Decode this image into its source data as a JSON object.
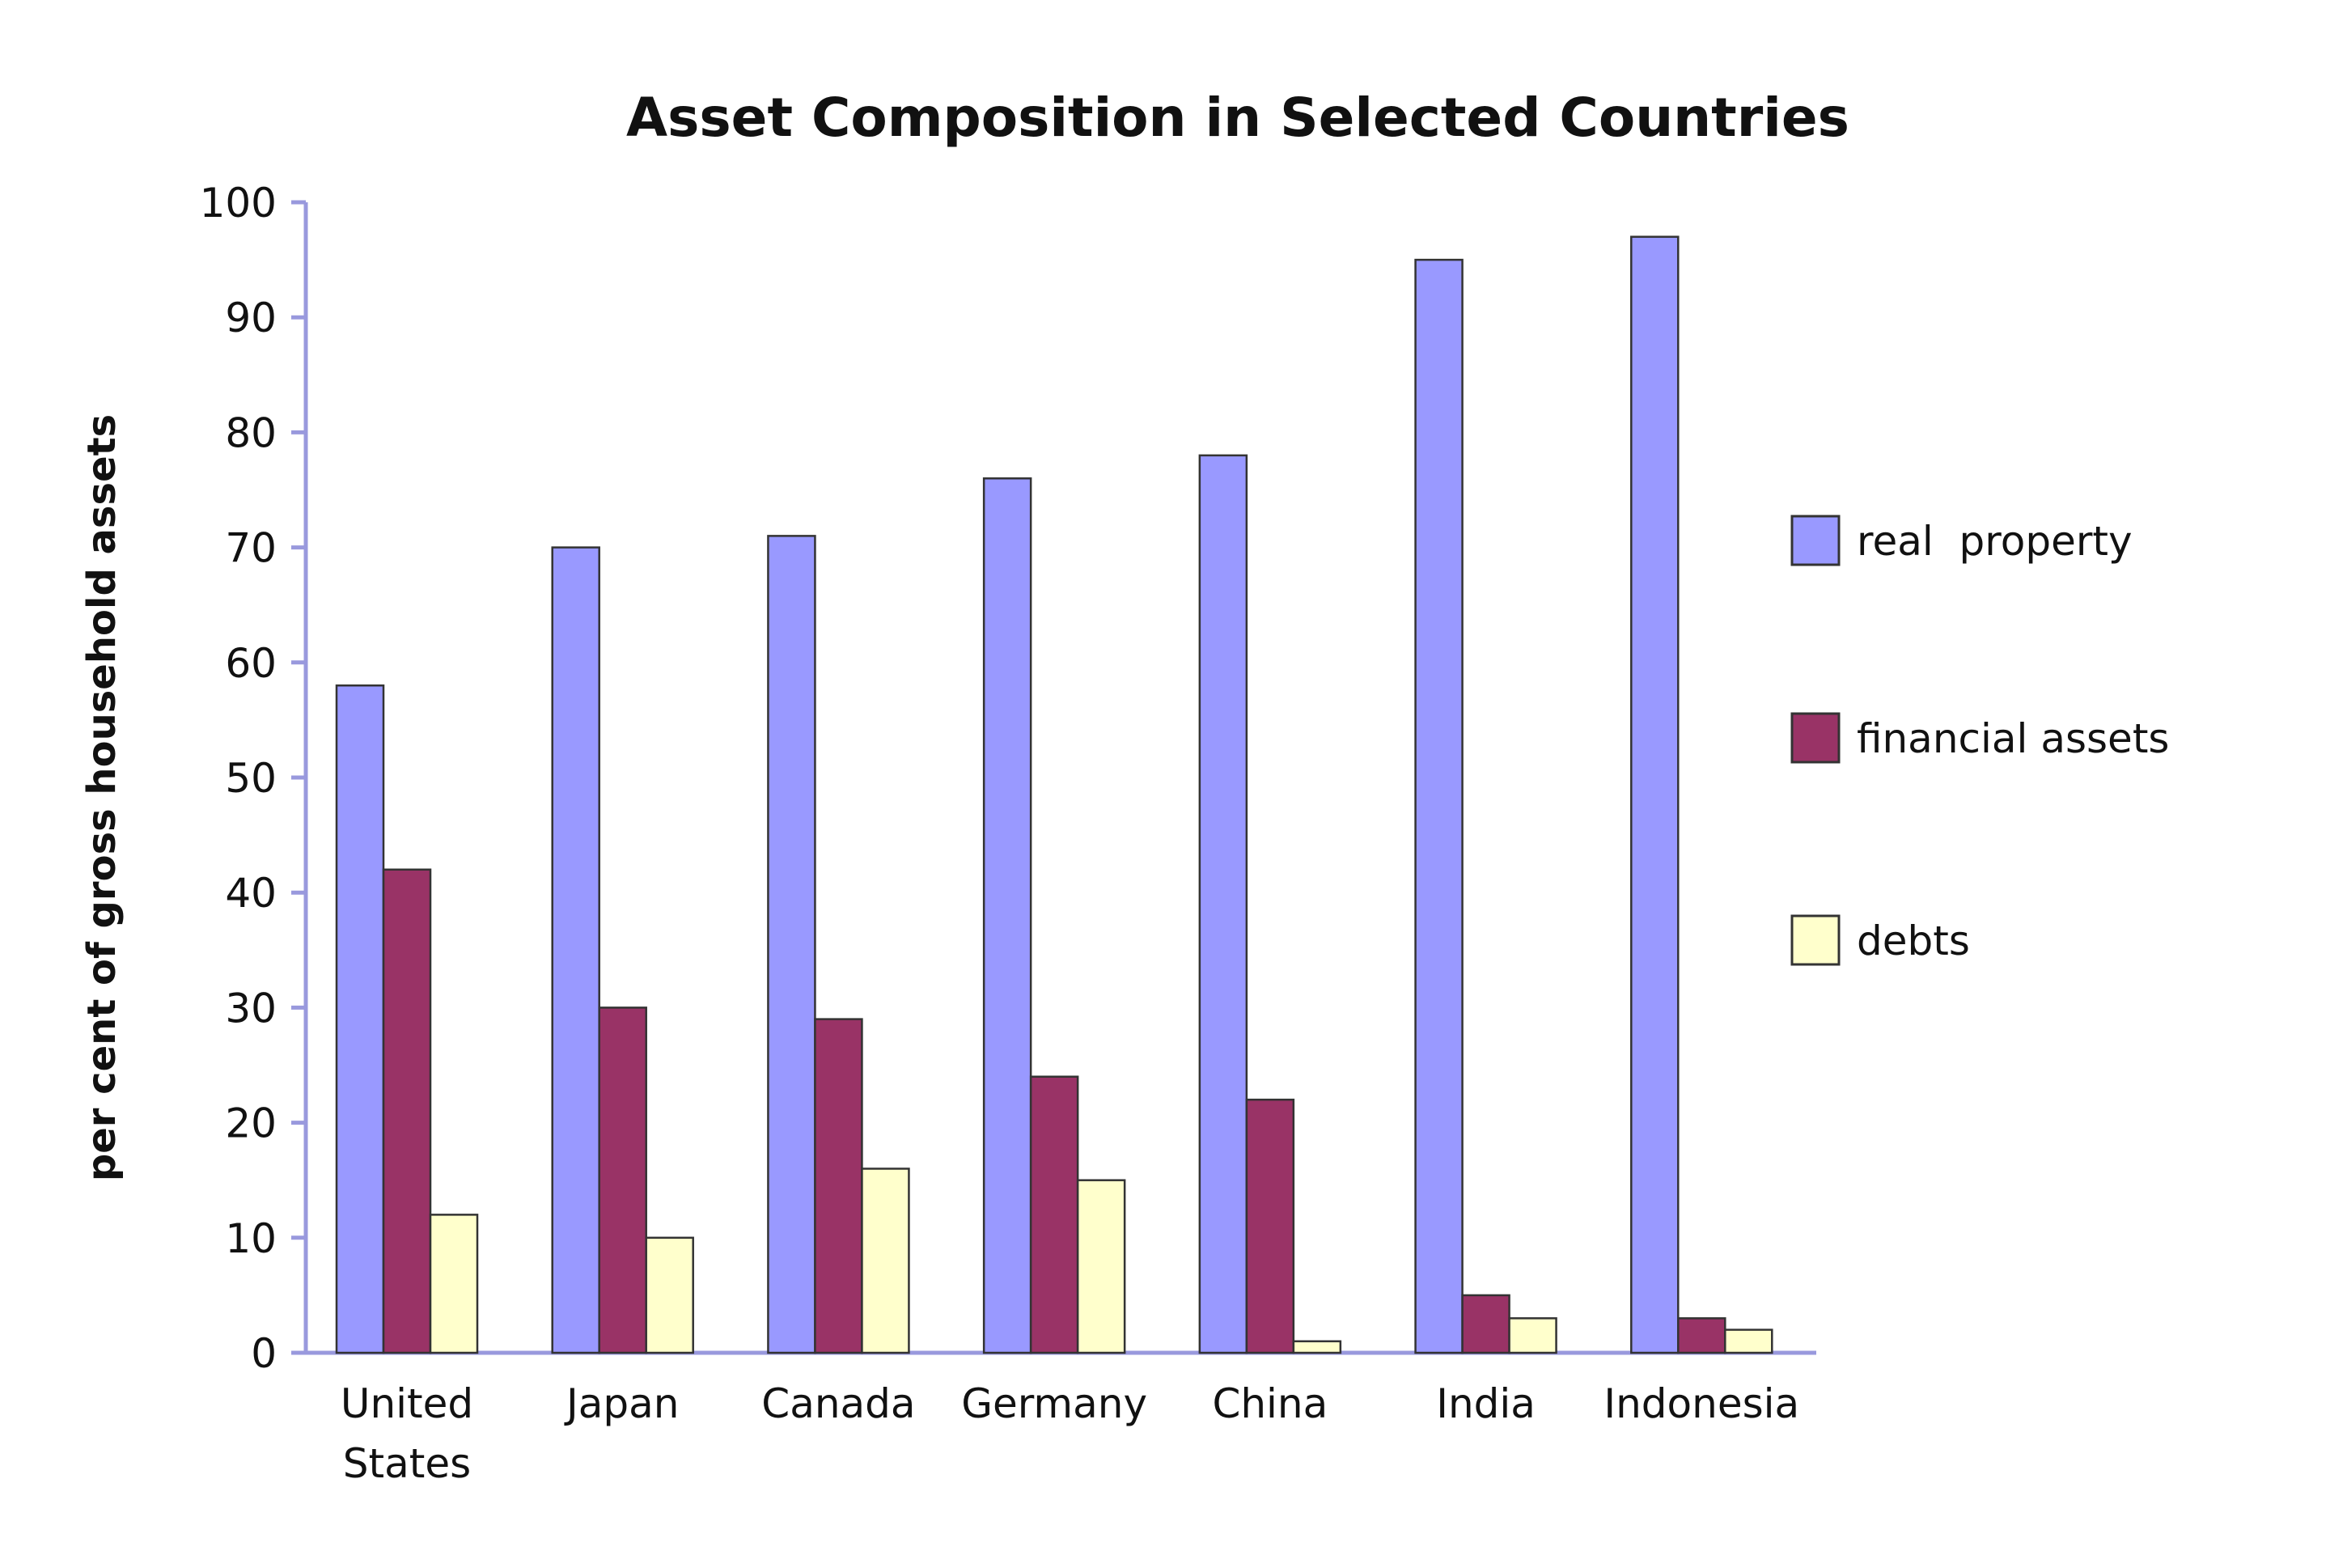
{
  "chart_data": {
    "type": "bar",
    "title": "Asset Composition in Selected Countries",
    "xlabel": "",
    "ylabel": "per cent of gross household assets",
    "ylim": [
      0,
      100
    ],
    "yticks": [
      0,
      10,
      20,
      30,
      40,
      50,
      60,
      70,
      80,
      90,
      100
    ],
    "grid": false,
    "legend_position": "right",
    "categories": [
      [
        "United",
        "States"
      ],
      [
        "Japan"
      ],
      [
        "Canada"
      ],
      [
        "Germany"
      ],
      [
        "China"
      ],
      [
        "India"
      ],
      [
        "Indonesia"
      ]
    ],
    "series": [
      {
        "name": "real  property",
        "color": "#9999ff",
        "values": [
          58,
          70,
          71,
          76,
          78,
          95,
          97
        ]
      },
      {
        "name": "financial assets",
        "color": "#993366",
        "values": [
          42,
          30,
          29,
          24,
          22,
          5,
          3
        ]
      },
      {
        "name": "debts",
        "color": "#ffffcc",
        "values": [
          12,
          10,
          16,
          15,
          1,
          3,
          2
        ]
      }
    ],
    "axis_color": "#9999dd"
  }
}
